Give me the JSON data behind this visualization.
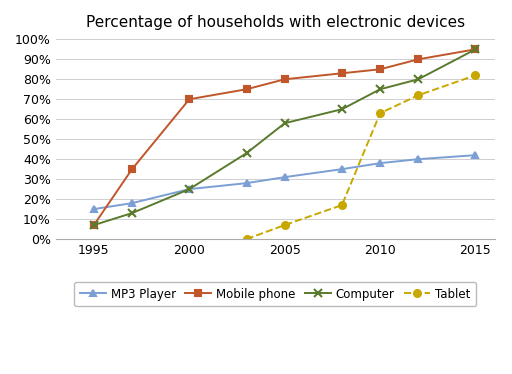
{
  "title": "Percentage of households with electronic devices",
  "series": {
    "MP3 Player": {
      "x": [
        1995,
        1997,
        2000,
        2003,
        2005,
        2008,
        2010,
        2012,
        2015
      ],
      "y": [
        15,
        18,
        25,
        28,
        31,
        35,
        38,
        40,
        42
      ],
      "color": "#7b9fd4",
      "marker": "^",
      "linestyle": "-",
      "markersize": 5
    },
    "Mobile phone": {
      "x": [
        1995,
        1997,
        2000,
        2003,
        2005,
        2008,
        2010,
        2012,
        2015
      ],
      "y": [
        7,
        35,
        70,
        75,
        80,
        83,
        85,
        90,
        95
      ],
      "color": "#c0562a",
      "marker": "s",
      "linestyle": "-",
      "markersize": 5
    },
    "Computer": {
      "x": [
        1995,
        1997,
        2000,
        2003,
        2005,
        2008,
        2010,
        2012,
        2015
      ],
      "y": [
        7,
        13,
        25,
        43,
        58,
        65,
        75,
        80,
        95
      ],
      "color": "#5a7a2e",
      "marker": "x",
      "linestyle": "-",
      "markersize": 6
    },
    "Tablet": {
      "x": [
        2003,
        2005,
        2008,
        2010,
        2012,
        2015
      ],
      "y": [
        0,
        7,
        17,
        63,
        72,
        82
      ],
      "color": "#c8a800",
      "marker": "o",
      "linestyle": "--",
      "markersize": 5
    }
  },
  "xlim": [
    1993,
    2016
  ],
  "ylim": [
    0,
    102
  ],
  "xticks": [
    1995,
    2000,
    2005,
    2010,
    2015
  ],
  "yticks": [
    0,
    10,
    20,
    30,
    40,
    50,
    60,
    70,
    80,
    90,
    100
  ],
  "background_color": "#ffffff",
  "title_fontsize": 11,
  "tick_fontsize": 9,
  "legend_fontsize": 8.5,
  "figsize": [
    5.12,
    3.74
  ],
  "dpi": 100
}
